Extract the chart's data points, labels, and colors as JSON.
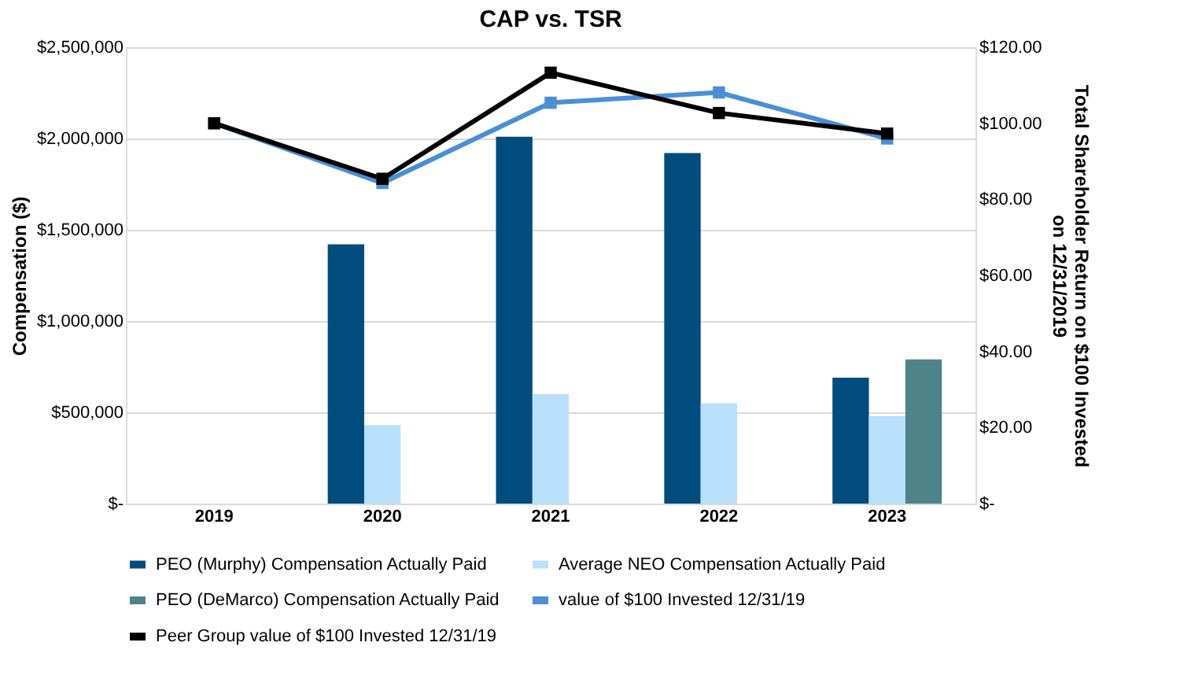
{
  "chart_data": {
    "type": "bar",
    "title": "CAP vs. TSR",
    "ylabel": "Compensation ($)",
    "y2label": "Total Shareholder Return on $100 Invested on 12/31/2019",
    "categories": [
      "2019",
      "2020",
      "2021",
      "2022",
      "2023"
    ],
    "series": [
      {
        "name": "PEO (Murphy) Compensation Actually Paid",
        "color": "#004c7f",
        "values": [
          null,
          1420000,
          2010000,
          1920000,
          690000
        ]
      },
      {
        "name": "Average NEO Compensation Actually Paid",
        "color": "#b8e0fa",
        "values": [
          null,
          430000,
          600000,
          550000,
          480000
        ]
      },
      {
        "name": "PEO (DeMarco) Compensation Actually Paid",
        "color": "#4e8489",
        "values": [
          null,
          null,
          null,
          null,
          790000
        ]
      },
      {
        "name": "value of $100 Invested 12/31/19",
        "type": "line",
        "axis": "y2",
        "color": "#4a8fd6",
        "values": [
          100,
          84.3,
          105.4,
          108.1,
          96.0
        ]
      },
      {
        "name": "Peer Group value of $100 Invested 12/31/19",
        "type": "line",
        "axis": "y2",
        "color": "#000000",
        "values": [
          100,
          85.4,
          113.3,
          102.7,
          97.3
        ]
      }
    ],
    "ylim": [
      0,
      2500000
    ],
    "yticks": [
      {
        "value": 0,
        "label": "$-"
      },
      {
        "value": 500000,
        "label": "$500,000"
      },
      {
        "value": 1000000,
        "label": "$1,000,000"
      },
      {
        "value": 1500000,
        "label": "$1,500,000"
      },
      {
        "value": 2000000,
        "label": "$2,000,000"
      },
      {
        "value": 2500000,
        "label": "$2,500,000"
      }
    ],
    "y2lim": [
      0,
      120
    ],
    "y2ticks": [
      {
        "value": 0,
        "label": "$-"
      },
      {
        "value": 20,
        "label": "$20.00"
      },
      {
        "value": 40,
        "label": "$40.00"
      },
      {
        "value": 60,
        "label": "$60.00"
      },
      {
        "value": 80,
        "label": "$80.00"
      },
      {
        "value": 100,
        "label": "$100.00"
      },
      {
        "value": 120,
        "label": "$120.00"
      }
    ],
    "grid": "y",
    "legend": "bottom",
    "marker": "square",
    "line_style": "solid"
  }
}
